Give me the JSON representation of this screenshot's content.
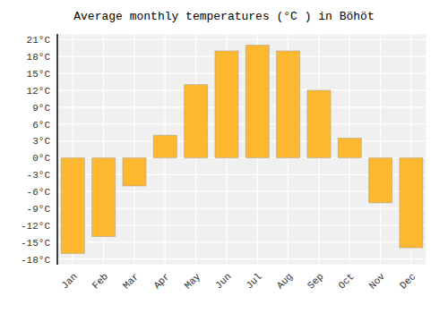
{
  "chart_data": {
    "type": "bar",
    "title": "Average monthly temperatures (°C ) in Böhöt",
    "categories": [
      "Jan",
      "Feb",
      "Mar",
      "Apr",
      "May",
      "Jun",
      "Jul",
      "Aug",
      "Sep",
      "Oct",
      "Nov",
      "Dec"
    ],
    "values": [
      -17,
      -14,
      -5,
      4,
      13,
      19,
      20,
      19,
      12,
      3.5,
      -8,
      -16
    ],
    "color": "#FDB830",
    "ylim": [
      -19,
      22
    ],
    "yticks": [
      {
        "value": -18,
        "label": "-18°C"
      },
      {
        "value": -15,
        "label": "-15°C"
      },
      {
        "value": -12,
        "label": "-12°C"
      },
      {
        "value": -9,
        "label": "-9°C"
      },
      {
        "value": -6,
        "label": "-6°C"
      },
      {
        "value": -3,
        "label": "-3°C"
      },
      {
        "value": 0,
        "label": "0°C"
      },
      {
        "value": 3,
        "label": "3°C"
      },
      {
        "value": 6,
        "label": "6°C"
      },
      {
        "value": 9,
        "label": "9°C"
      },
      {
        "value": 12,
        "label": "12°C"
      },
      {
        "value": 15,
        "label": "15°C"
      },
      {
        "value": 18,
        "label": "18°C"
      },
      {
        "value": 21,
        "label": "21°C"
      }
    ],
    "grid": true
  }
}
